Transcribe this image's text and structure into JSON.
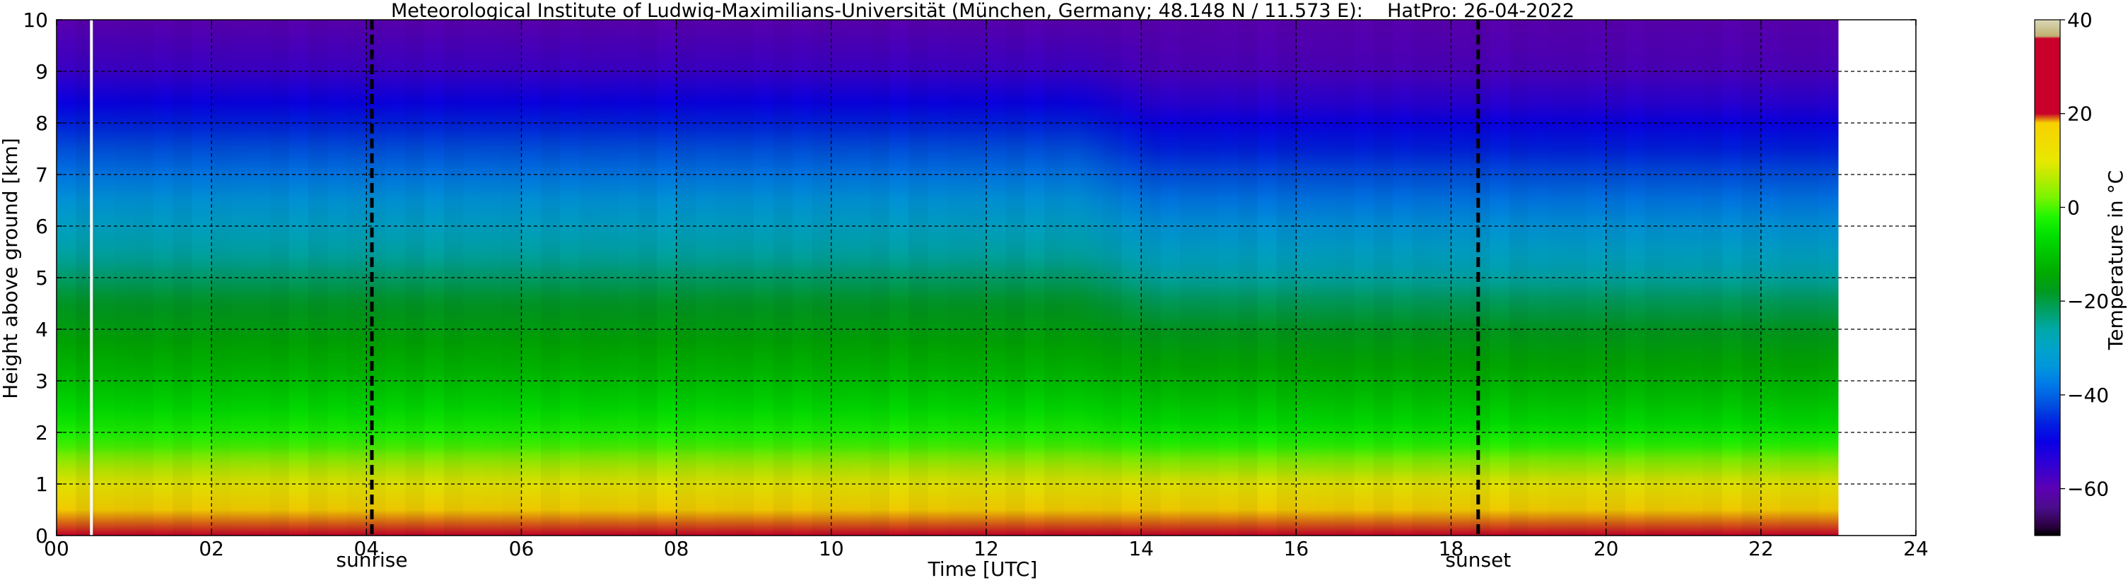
{
  "chart_data": {
    "type": "heatmap",
    "title": "Meteorological Institute of Ludwig-Maximilians-Universität (München, Germany; 48.148 N / 11.573 E):    HatPro: 26-04-2022",
    "xlabel": "Time [UTC]",
    "ylabel": "Height above ground [km]",
    "xlim": [
      0,
      24
    ],
    "ylim": [
      0,
      10
    ],
    "data_time_range": [
      0,
      23
    ],
    "grid": true,
    "x_ticks": [
      {
        "value": 0,
        "label": "00"
      },
      {
        "value": 2,
        "label": "02"
      },
      {
        "value": 4,
        "label": "04"
      },
      {
        "value": 6,
        "label": "06"
      },
      {
        "value": 8,
        "label": "08"
      },
      {
        "value": 10,
        "label": "10"
      },
      {
        "value": 12,
        "label": "12"
      },
      {
        "value": 14,
        "label": "14"
      },
      {
        "value": 16,
        "label": "16"
      },
      {
        "value": 18,
        "label": "18"
      },
      {
        "value": 20,
        "label": "20"
      },
      {
        "value": 22,
        "label": "22"
      },
      {
        "value": 24,
        "label": "24"
      }
    ],
    "y_ticks": [
      {
        "value": 0,
        "label": "0"
      },
      {
        "value": 1,
        "label": "1"
      },
      {
        "value": 2,
        "label": "2"
      },
      {
        "value": 3,
        "label": "3"
      },
      {
        "value": 4,
        "label": "4"
      },
      {
        "value": 5,
        "label": "5"
      },
      {
        "value": 6,
        "label": "6"
      },
      {
        "value": 7,
        "label": "7"
      },
      {
        "value": 8,
        "label": "8"
      },
      {
        "value": 9,
        "label": "9"
      },
      {
        "value": 10,
        "label": "10"
      }
    ],
    "markers": [
      {
        "name": "sunrise",
        "label": "sunrise",
        "time": 4.07
      },
      {
        "name": "sunset",
        "label": "sunset",
        "time": 18.35
      }
    ],
    "current_time_line": 0.45,
    "temperature_profile": {
      "heights_km": [
        0,
        0.5,
        1,
        1.3,
        1.7,
        2.2,
        3,
        4,
        4.6,
        5.2,
        6,
        6.5,
        7,
        7.5,
        8,
        8.4,
        9,
        10
      ],
      "before_14h_C": [
        20,
        18,
        10,
        6,
        0,
        -4,
        -10,
        -16,
        -19,
        -24,
        -30,
        -34,
        -38,
        -42,
        -46,
        -50,
        -56,
        -60
      ],
      "after_14h_C": [
        20,
        18,
        10,
        5,
        -1,
        -6,
        -12,
        -18,
        -22,
        -28,
        -34,
        -38,
        -42,
        -46,
        -50,
        -54,
        -58,
        -60
      ]
    },
    "colorbar": {
      "label": "Temperature in °C",
      "range": [
        -70,
        40
      ],
      "ticks": [
        {
          "value": 40,
          "label": "40"
        },
        {
          "value": 20,
          "label": "20"
        },
        {
          "value": 0,
          "label": "0"
        },
        {
          "value": -20,
          "label": "−20"
        },
        {
          "value": -40,
          "label": "−40"
        },
        {
          "value": -60,
          "label": "−60"
        }
      ],
      "stops": [
        {
          "value": -70,
          "color": "#000000"
        },
        {
          "value": -68,
          "color": "#2a0040"
        },
        {
          "value": -64,
          "color": "#4b0d8c"
        },
        {
          "value": -60,
          "color": "#5c00b4"
        },
        {
          "value": -55,
          "color": "#3200d2"
        },
        {
          "value": -50,
          "color": "#0a00e6"
        },
        {
          "value": -46,
          "color": "#0020e0"
        },
        {
          "value": -42,
          "color": "#0050e0"
        },
        {
          "value": -38,
          "color": "#0078e8"
        },
        {
          "value": -34,
          "color": "#0096dc"
        },
        {
          "value": -30,
          "color": "#00a4c8"
        },
        {
          "value": -26,
          "color": "#00a8a8"
        },
        {
          "value": -22,
          "color": "#00a064"
        },
        {
          "value": -18,
          "color": "#009a20"
        },
        {
          "value": -14,
          "color": "#00aa00"
        },
        {
          "value": -10,
          "color": "#00c400"
        },
        {
          "value": -6,
          "color": "#00e000"
        },
        {
          "value": -2,
          "color": "#20f600"
        },
        {
          "value": 2,
          "color": "#78f400"
        },
        {
          "value": 6,
          "color": "#b4ec00"
        },
        {
          "value": 10,
          "color": "#e8e800"
        },
        {
          "value": 14,
          "color": "#f0dc00"
        },
        {
          "value": 18,
          "color": "#f8d000"
        },
        {
          "value": 20,
          "color": "#c8002a"
        },
        {
          "value": 36,
          "color": "#c8002a"
        },
        {
          "value": 36.5,
          "color": "#c0b070"
        },
        {
          "value": 40,
          "color": "#d8d8b8"
        }
      ]
    }
  }
}
